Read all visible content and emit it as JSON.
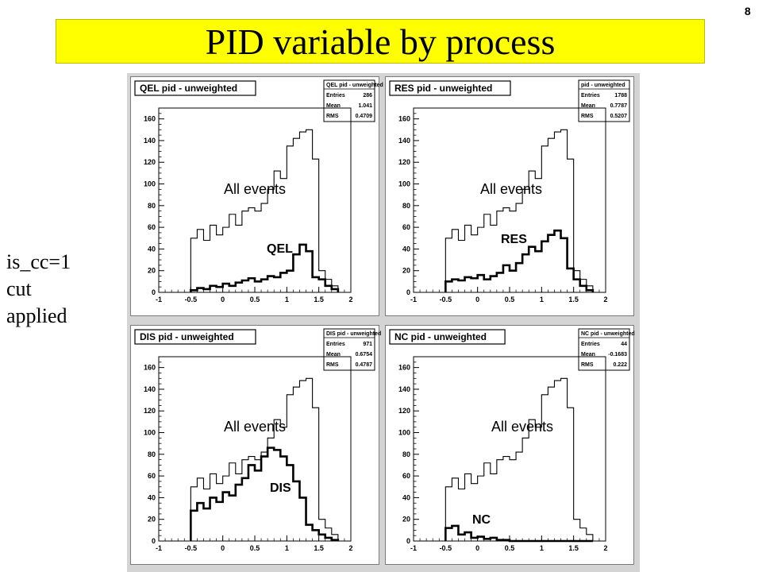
{
  "page_number": "8",
  "title": "PID variable by process",
  "side_note": [
    "is_cc=1",
    "cut",
    "applied"
  ],
  "colors": {
    "banner": "#ffff00",
    "canvas": "#d4d4d4",
    "frame": "#ffffff",
    "line": "#000000"
  },
  "chart_data": [
    {
      "type": "histogram",
      "title": "QEL pid - unweighted",
      "stats": {
        "name": "QEL pid - unweighted",
        "entries": "286",
        "mean": "1.041",
        "rms": "0.4709"
      },
      "annotations": {
        "all": "All events",
        "process": "QEL"
      },
      "xlim": [
        -1,
        2
      ],
      "ylim": [
        0,
        170
      ],
      "x_ticks": [
        "-1",
        "-0.5",
        "0",
        "0.5",
        "1",
        "1.5",
        "2"
      ],
      "y_ticks": [
        "0",
        "20",
        "40",
        "60",
        "80",
        "100",
        "120",
        "140",
        "160"
      ],
      "bin_edges": [
        -0.5,
        -0.4,
        -0.3,
        -0.2,
        -0.1,
        0.0,
        0.1,
        0.2,
        0.3,
        0.4,
        0.5,
        0.6,
        0.7,
        0.8,
        0.9,
        1.0,
        1.1,
        1.2,
        1.3,
        1.4,
        1.5,
        1.6,
        1.7,
        1.8
      ],
      "series": [
        {
          "name": "All events",
          "style": "thin",
          "values": [
            50,
            58,
            48,
            62,
            53,
            60,
            72,
            62,
            75,
            78,
            75,
            82,
            95,
            112,
            105,
            135,
            142,
            148,
            150,
            123,
            20,
            12,
            6
          ]
        },
        {
          "name": "QEL",
          "style": "thick",
          "values": [
            2,
            4,
            3,
            6,
            5,
            8,
            6,
            9,
            11,
            13,
            10,
            12,
            15,
            14,
            18,
            20,
            35,
            44,
            38,
            14,
            12,
            6,
            3
          ]
        }
      ]
    },
    {
      "type": "histogram",
      "title": "RES pid - unweighted",
      "stats": {
        "name": "pid - unweighted",
        "entries": "1788",
        "mean": "0.7787",
        "rms": "0.5207"
      },
      "annotations": {
        "all": "All events",
        "process": "RES"
      },
      "xlim": [
        -1,
        2
      ],
      "ylim": [
        0,
        170
      ],
      "x_ticks": [
        "-1",
        "-0.5",
        "0",
        "0.5",
        "1",
        "1.5",
        "2"
      ],
      "y_ticks": [
        "0",
        "20",
        "40",
        "60",
        "80",
        "100",
        "120",
        "140",
        "160"
      ],
      "bin_edges": [
        -0.5,
        -0.4,
        -0.3,
        -0.2,
        -0.1,
        0.0,
        0.1,
        0.2,
        0.3,
        0.4,
        0.5,
        0.6,
        0.7,
        0.8,
        0.9,
        1.0,
        1.1,
        1.2,
        1.3,
        1.4,
        1.5,
        1.6,
        1.7,
        1.8
      ],
      "series": [
        {
          "name": "All events",
          "style": "thin",
          "values": [
            50,
            58,
            48,
            62,
            53,
            60,
            72,
            62,
            75,
            78,
            75,
            82,
            95,
            112,
            105,
            135,
            142,
            148,
            150,
            123,
            20,
            12,
            6
          ]
        },
        {
          "name": "RES",
          "style": "thick",
          "values": [
            10,
            12,
            11,
            14,
            13,
            16,
            12,
            15,
            18,
            25,
            20,
            27,
            35,
            42,
            38,
            47,
            53,
            57,
            50,
            22,
            12,
            6,
            2
          ]
        }
      ]
    },
    {
      "type": "histogram",
      "title": "DIS pid - unweighted",
      "stats": {
        "name": "DIS pid - unweighted",
        "entries": "971",
        "mean": "0.6754",
        "rms": "0.4787"
      },
      "annotations": {
        "all": "All events",
        "process": "DIS"
      },
      "xlim": [
        -1,
        2
      ],
      "ylim": [
        0,
        170
      ],
      "x_ticks": [
        "-1",
        "-0.5",
        "0",
        "0.5",
        "1",
        "1.5",
        "2"
      ],
      "y_ticks": [
        "0",
        "20",
        "40",
        "60",
        "80",
        "100",
        "120",
        "140",
        "160"
      ],
      "bin_edges": [
        -0.5,
        -0.4,
        -0.3,
        -0.2,
        -0.1,
        0.0,
        0.1,
        0.2,
        0.3,
        0.4,
        0.5,
        0.6,
        0.7,
        0.8,
        0.9,
        1.0,
        1.1,
        1.2,
        1.3,
        1.4,
        1.5,
        1.6,
        1.7,
        1.8
      ],
      "series": [
        {
          "name": "All events",
          "style": "thin",
          "values": [
            50,
            58,
            48,
            62,
            53,
            60,
            72,
            62,
            75,
            78,
            75,
            82,
            95,
            112,
            105,
            135,
            142,
            148,
            150,
            123,
            20,
            12,
            6
          ]
        },
        {
          "name": "DIS",
          "style": "thick",
          "values": [
            28,
            35,
            30,
            40,
            36,
            45,
            42,
            52,
            58,
            70,
            65,
            78,
            86,
            84,
            78,
            70,
            55,
            40,
            15,
            10,
            6,
            3,
            1
          ]
        }
      ]
    },
    {
      "type": "histogram",
      "title": "NC pid - unweighted",
      "stats": {
        "name": "NC pid - unweighted",
        "entries": "44",
        "mean": "-0.1683",
        "rms": "0.222"
      },
      "annotations": {
        "all": "All events",
        "process": "NC"
      },
      "xlim": [
        -1,
        2
      ],
      "ylim": [
        0,
        170
      ],
      "x_ticks": [
        "-1",
        "-0.5",
        "0",
        "0.5",
        "1",
        "1.5",
        "2"
      ],
      "y_ticks": [
        "0",
        "20",
        "40",
        "60",
        "80",
        "100",
        "120",
        "140",
        "160"
      ],
      "bin_edges": [
        -0.5,
        -0.4,
        -0.3,
        -0.2,
        -0.1,
        0.0,
        0.1,
        0.2,
        0.3,
        0.4,
        0.5,
        0.6,
        0.7,
        0.8,
        0.9,
        1.0,
        1.1,
        1.2,
        1.3,
        1.4,
        1.5,
        1.6,
        1.7,
        1.8
      ],
      "series": [
        {
          "name": "All events",
          "style": "thin",
          "values": [
            50,
            58,
            48,
            62,
            53,
            60,
            72,
            62,
            75,
            78,
            75,
            82,
            95,
            112,
            105,
            135,
            142,
            148,
            150,
            123,
            20,
            12,
            6
          ]
        },
        {
          "name": "NC",
          "style": "thick",
          "values": [
            12,
            14,
            6,
            8,
            3,
            4,
            2,
            3,
            1,
            1,
            0,
            0,
            0,
            0,
            0,
            0,
            0,
            0,
            0,
            0,
            0,
            0,
            0
          ]
        }
      ]
    }
  ]
}
